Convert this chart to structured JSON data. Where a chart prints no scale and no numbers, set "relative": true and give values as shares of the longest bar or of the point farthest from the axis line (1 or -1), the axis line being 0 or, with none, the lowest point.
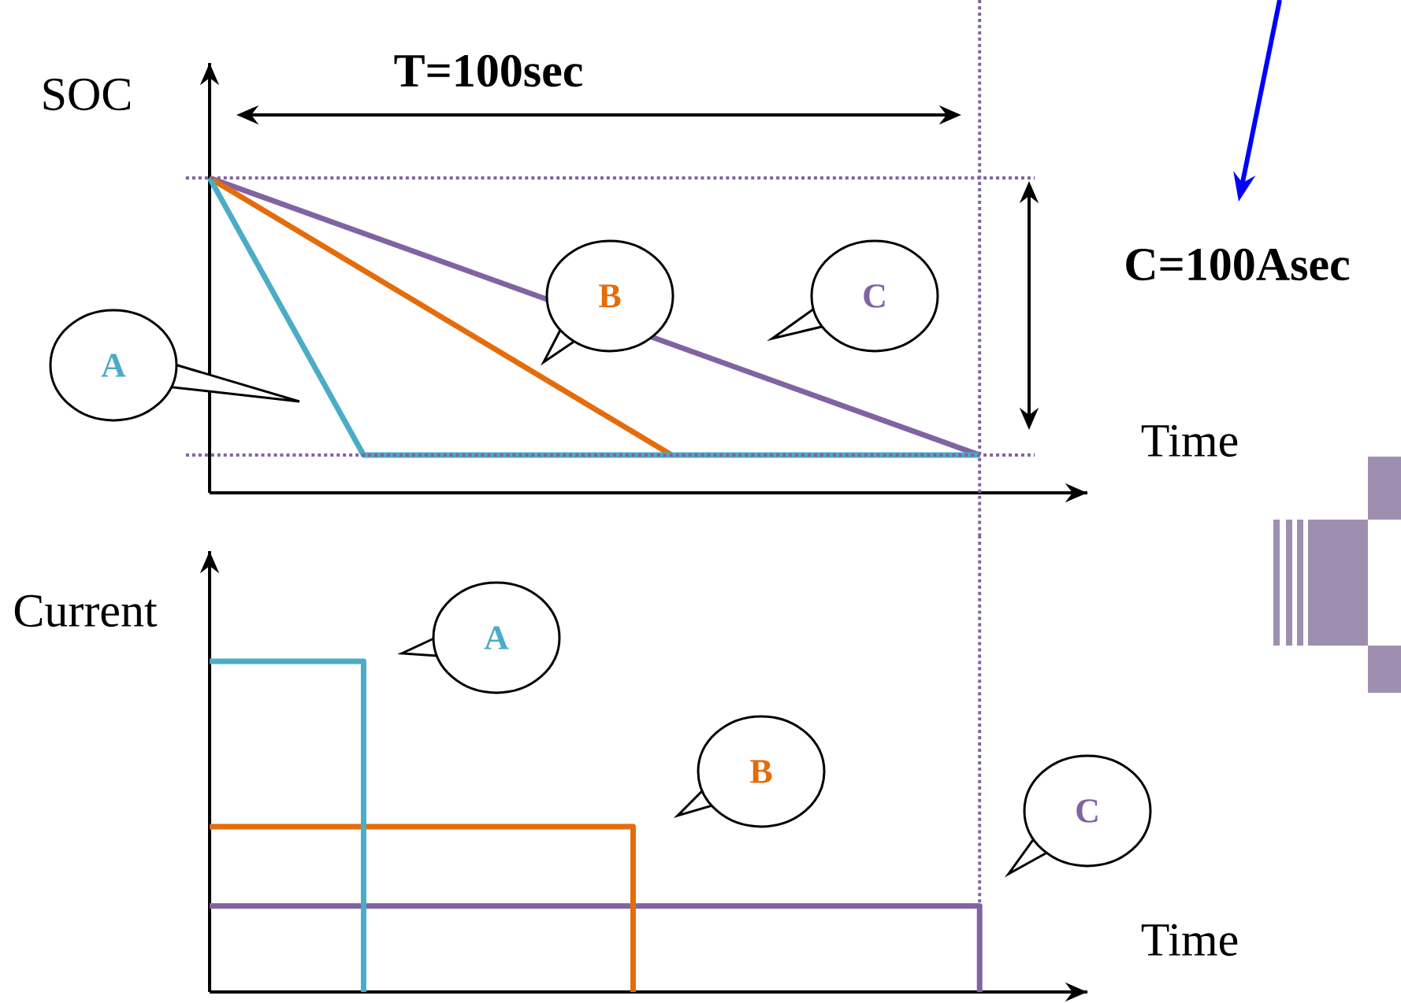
{
  "chart_data": [
    {
      "type": "line",
      "xlabel": "Time",
      "ylabel": "SOC",
      "relative": true,
      "categories": [
        null,
        null,
        null,
        null,
        null,
        null,
        null,
        null,
        null,
        null,
        null,
        null,
        null,
        null,
        null,
        null,
        null,
        null,
        null,
        null,
        null
      ],
      "series": [
        {
          "name": "A",
          "color": "#4bacc6",
          "values": [
            1,
            null,
            null,
            null,
            0.12,
            null,
            null,
            null,
            null,
            null,
            null,
            null,
            null,
            null,
            null,
            null,
            null,
            null,
            null,
            null,
            0.12
          ]
        },
        {
          "name": "B",
          "color": "#e46c0a",
          "values": [
            1,
            null,
            null,
            null,
            null,
            null,
            null,
            null,
            null,
            null,
            null,
            null,
            0.12,
            null,
            null,
            null,
            null,
            null,
            null,
            null,
            null
          ]
        },
        {
          "name": "C",
          "color": "#8064a2",
          "values": [
            1,
            null,
            null,
            null,
            null,
            null,
            null,
            null,
            null,
            null,
            null,
            null,
            null,
            null,
            null,
            null,
            null,
            null,
            null,
            null,
            0.12
          ]
        }
      ],
      "ref_lines": [
        {
          "axis": "y",
          "value": 1,
          "color": "#8064a2",
          "line_style": "dotted"
        },
        {
          "axis": "y",
          "value": 0.12,
          "color": "#8064a2",
          "line_style": "dotted"
        }
      ],
      "annotations": [
        "T=100sec",
        "C=100Asec"
      ]
    },
    {
      "type": "step",
      "xlabel": "Time",
      "ylabel": "Current",
      "relative": true,
      "categories": [
        null,
        null,
        null,
        null,
        null,
        null,
        null,
        null,
        null,
        null,
        null,
        null,
        null,
        null,
        null,
        null,
        null,
        null,
        null,
        null,
        null
      ],
      "series": [
        {
          "name": "A",
          "color": "#4bacc6",
          "values": [
            1,
            null,
            null,
            null,
            0,
            null,
            null,
            null,
            null,
            null,
            null,
            null,
            null,
            null,
            null,
            null,
            null,
            null,
            null,
            null,
            null
          ]
        },
        {
          "name": "B",
          "color": "#e46c0a",
          "values": [
            0.5,
            null,
            null,
            null,
            null,
            null,
            null,
            null,
            null,
            null,
            null,
            0,
            null,
            null,
            null,
            null,
            null,
            null,
            null,
            null,
            null
          ]
        },
        {
          "name": "C",
          "color": "#8064a2",
          "values": [
            0.26,
            null,
            null,
            null,
            null,
            null,
            null,
            null,
            null,
            null,
            null,
            null,
            null,
            null,
            null,
            null,
            null,
            null,
            null,
            null,
            0
          ]
        }
      ]
    }
  ]
}
